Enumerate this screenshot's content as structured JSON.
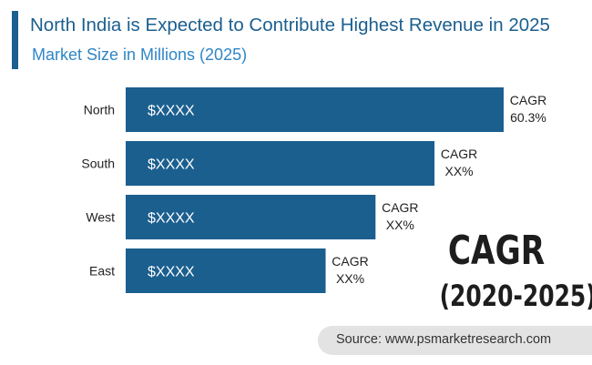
{
  "header": {
    "title": "North India is Expected to Contribute Highest Revenue in 2025",
    "subtitle": "Market Size in Millions (2025)"
  },
  "chart_data": {
    "type": "bar",
    "orientation": "horizontal",
    "title": "North India is Expected to Contribute Highest Revenue in 2025",
    "subtitle": "Market Size in Millions (2025)",
    "categories": [
      "North",
      "South",
      "West",
      "East"
    ],
    "relative_values": [
      1.0,
      0.817,
      0.661,
      0.529
    ],
    "bar_labels": [
      "$XXXX",
      "$XXXX",
      "$XXXX",
      "$XXXX"
    ],
    "cagr_labels": [
      {
        "label": "CAGR",
        "value": "60.3%"
      },
      {
        "label": "CAGR",
        "value": "XX%"
      },
      {
        "label": "CAGR",
        "value": "XX%"
      },
      {
        "label": "CAGR",
        "value": "XX%"
      }
    ],
    "legend": "none",
    "grid": false,
    "bar_color": "#1b5f8f"
  },
  "callout": {
    "line1": "CAGR",
    "line2": "(2020-2025)"
  },
  "source": "Source: www.psmarketresearch.com",
  "colors": {
    "accent": "#1b5f8f",
    "subtitle": "#2f86c7",
    "bar_text": "#ffffff",
    "source_bg": "#e3e3e3"
  }
}
